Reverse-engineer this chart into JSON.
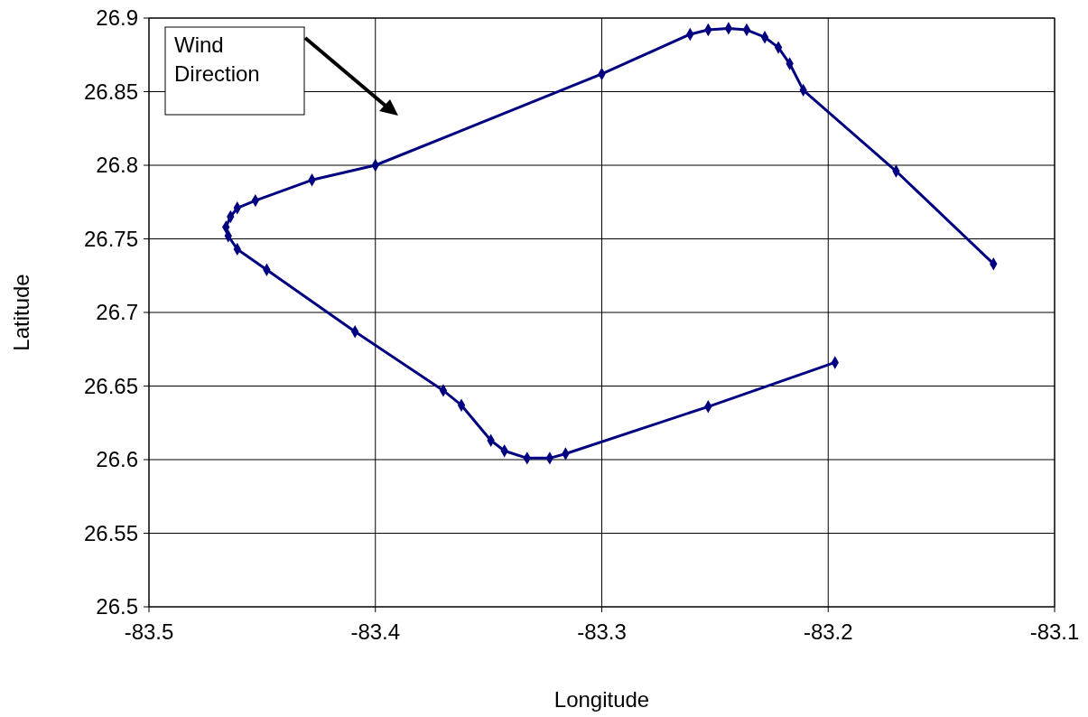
{
  "chart_data": {
    "type": "line",
    "xlabel": "Longitude",
    "ylabel": "Latitude",
    "annotations": [
      "Wind Direction"
    ],
    "marker": "diamond",
    "line_style": "solid",
    "grid": true,
    "xlim": [
      -83.5,
      -83.1
    ],
    "ylim": [
      26.5,
      26.9
    ],
    "xticks": [
      -83.5,
      -83.4,
      -83.3,
      -83.2,
      -83.1
    ],
    "yticks": [
      26.5,
      26.55,
      26.6,
      26.65,
      26.7,
      26.75,
      26.8,
      26.85,
      26.9
    ],
    "series": [
      {
        "color": "#000080",
        "x": [
          -83.197,
          -83.253,
          -83.316,
          -83.323,
          -83.333,
          -83.343,
          -83.349,
          -83.362,
          -83.37,
          -83.409,
          -83.448,
          -83.461,
          -83.465,
          -83.466,
          -83.464,
          -83.461,
          -83.453,
          -83.428,
          -83.4,
          -83.3,
          -83.261,
          -83.253,
          -83.244,
          -83.236,
          -83.228,
          -83.222,
          -83.217,
          -83.211,
          -83.17,
          -83.127
        ],
        "values": [
          26.666,
          26.636,
          26.604,
          26.601,
          26.601,
          26.606,
          26.613,
          26.637,
          26.647,
          26.687,
          26.729,
          26.743,
          26.752,
          26.758,
          26.765,
          26.771,
          26.776,
          26.79,
          26.8,
          26.862,
          26.889,
          26.892,
          26.893,
          26.892,
          26.887,
          26.88,
          26.869,
          26.851,
          26.796,
          26.733
        ]
      }
    ]
  }
}
